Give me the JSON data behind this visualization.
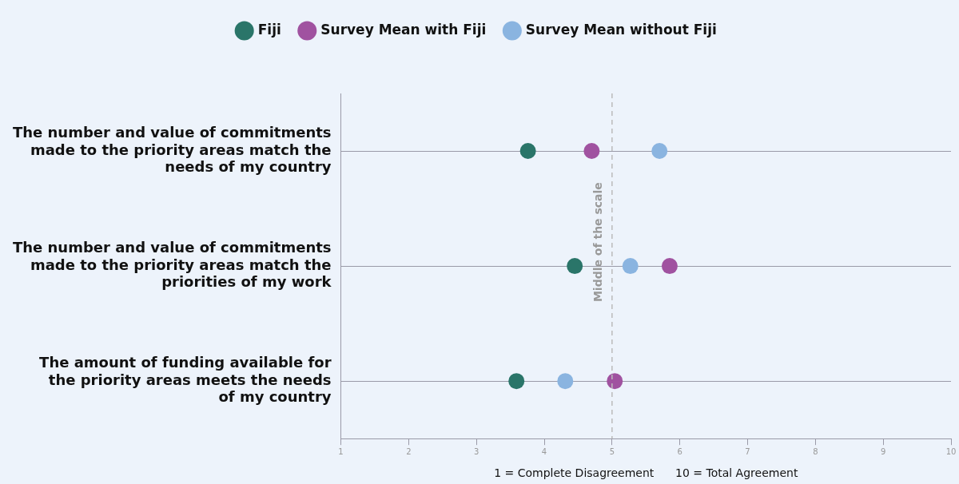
{
  "chart_data": {
    "type": "scatter",
    "orientation": "horizontal",
    "categories": [
      "The number and value of commitments made to the priority areas match the needs of my country",
      "The number and value of commitments made to the priority areas match the priorities of my work",
      "The amount of funding available for the priority areas meets the needs of my country"
    ],
    "series": [
      {
        "name": "Fiji",
        "color": "#2a7569",
        "values": [
          3.76,
          4.45,
          3.59
        ]
      },
      {
        "name": "Survey Mean with Fiji",
        "color": "#a052a0",
        "values": [
          4.7,
          5.85,
          5.04
        ]
      },
      {
        "name": "Survey Mean without Fiji",
        "color": "#8ab4e0",
        "values": [
          5.7,
          5.27,
          4.31
        ]
      }
    ],
    "xlim": [
      1,
      10
    ],
    "xticks": [
      1,
      2,
      3,
      4,
      5,
      6,
      7,
      8,
      9,
      10
    ],
    "xlabel": "1 = Complete Disagreement      10 = Total Agreement",
    "ref_lines": [
      {
        "axis": "x",
        "value": 5,
        "label": "Middle of the scale",
        "color": "#bbbbbb",
        "line_style": "dashed"
      }
    ],
    "grid": "y",
    "legend": "top",
    "marker": "circle"
  }
}
